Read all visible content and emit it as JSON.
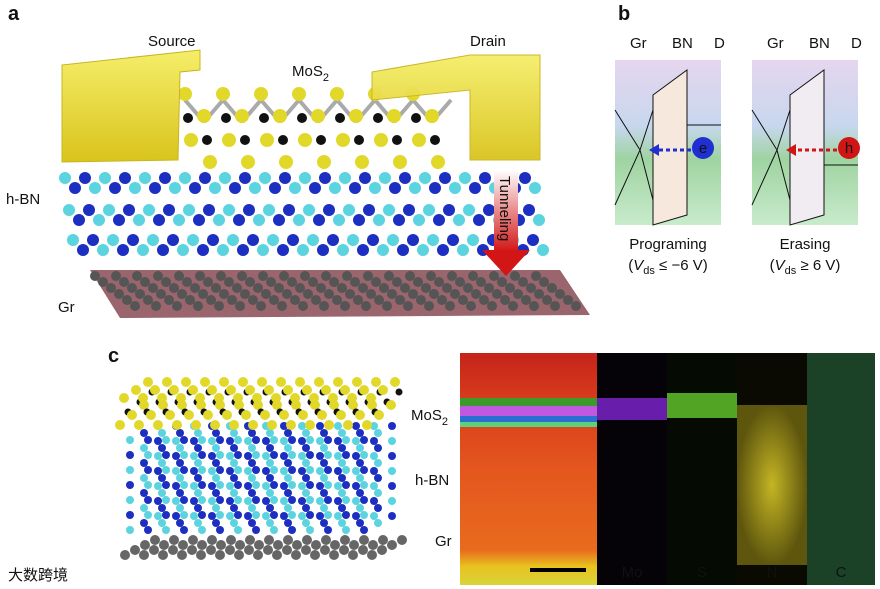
{
  "panel_a": {
    "letter": "a",
    "source": "Source",
    "drain": "Drain",
    "mos2": {
      "base": "MoS",
      "sub": "2"
    },
    "hbn": "h-BN",
    "tunneling": "Tunneling",
    "gr": "Gr"
  },
  "panel_b": {
    "letter": "b",
    "programming": {
      "layers": [
        "Gr",
        "BN",
        "D"
      ],
      "carrier": "e",
      "caption": "Programing",
      "condition": {
        "open": "(",
        "var": "V",
        "sub": "ds",
        "rest": " ≤ −6 V)"
      }
    },
    "erasing": {
      "layers": [
        "Gr",
        "BN",
        "D"
      ],
      "carrier": "h",
      "caption": "Erasing",
      "condition": {
        "open": "(",
        "var": "V",
        "sub": "ds",
        "rest": " ≥ 6 V)"
      }
    }
  },
  "panel_c": {
    "letter": "c",
    "mos2": {
      "base": "MoS",
      "sub": "2"
    },
    "hbn": "h-BN",
    "gr": "Gr",
    "maps": [
      "Mo",
      "S",
      "N",
      "C"
    ]
  },
  "watermark": "大数跨境"
}
